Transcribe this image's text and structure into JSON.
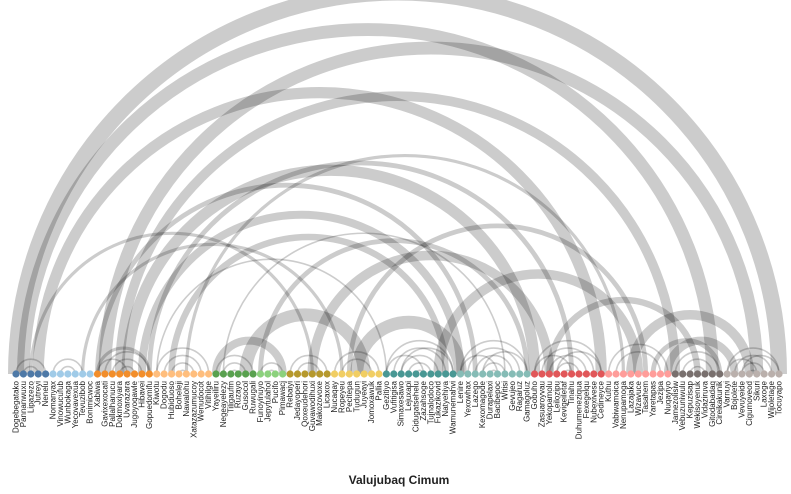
{
  "title": "Valujubaq Cimum",
  "nodes": [
    {
      "label": "Dogebegatako",
      "color": "#4e79a7"
    },
    {
      "label": "Pannanwuxu",
      "color": "#4e79a7"
    },
    {
      "label": "Lipazezo",
      "color": "#4e79a7"
    },
    {
      "label": "Jutreyi",
      "color": "#4e79a7"
    },
    {
      "label": "Nenelu",
      "color": "#4e79a7"
    },
    {
      "label": "Nomanyax",
      "color": "#a0cbe8"
    },
    {
      "label": "Vinowucufub",
      "color": "#a0cbe8"
    },
    {
      "label": "Wunbokaga",
      "color": "#a0cbe8"
    },
    {
      "label": "Yecovavexua",
      "color": "#a0cbe8"
    },
    {
      "label": "Tevuzibob",
      "color": "#a0cbe8"
    },
    {
      "label": "Bonimicwoc",
      "color": "#a0cbe8"
    },
    {
      "label": "Xabiwa",
      "color": "#f28e2b"
    },
    {
      "label": "Gavixexocati",
      "color": "#f28e2b"
    },
    {
      "label": "Pallalhanucu",
      "color": "#f28e2b"
    },
    {
      "label": "Dokmoxiyara",
      "color": "#f28e2b"
    },
    {
      "label": "Uvarazara",
      "color": "#f28e2b"
    },
    {
      "label": "Jugoyoqawle",
      "color": "#f28e2b"
    },
    {
      "label": "Hibavei",
      "color": "#f28e2b"
    },
    {
      "label": "Gopuedomifu",
      "color": "#f28e2b"
    },
    {
      "label": "Kiwotu",
      "color": "#ffbe7d"
    },
    {
      "label": "Dogodu",
      "color": "#ffbe7d"
    },
    {
      "label": "Hubiduoso",
      "color": "#ffbe7d"
    },
    {
      "label": "Boheleji",
      "color": "#ffbe7d"
    },
    {
      "label": "Nawalohu",
      "color": "#ffbe7d"
    },
    {
      "label": "Xatazazumucoy",
      "color": "#ffbe7d"
    },
    {
      "label": "Wenudocot",
      "color": "#ffbe7d"
    },
    {
      "label": "Vitihilge",
      "color": "#ffbe7d"
    },
    {
      "label": "Yayeiliru",
      "color": "#59a14f"
    },
    {
      "label": "Negeayelezy",
      "color": "#59a14f"
    },
    {
      "label": "Tiligaufm",
      "color": "#59a14f"
    },
    {
      "label": "Ruzayo",
      "color": "#59a14f"
    },
    {
      "label": "Gusocol",
      "color": "#59a14f"
    },
    {
      "label": "Ruwugali",
      "color": "#59a14f"
    },
    {
      "label": "Funoyinuyo",
      "color": "#8cd17d"
    },
    {
      "label": "Jepytulahol",
      "color": "#8cd17d"
    },
    {
      "label": "Pucifo",
      "color": "#8cd17d"
    },
    {
      "label": "Pimawacj",
      "color": "#8cd17d"
    },
    {
      "label": "Rebaiyi",
      "color": "#b6992d"
    },
    {
      "label": "Jedayoperi",
      "color": "#b6992d"
    },
    {
      "label": "Qoxeudehori",
      "color": "#b6992d"
    },
    {
      "label": "Guvawodihuxi",
      "color": "#b6992d"
    },
    {
      "label": "Makozovoxe",
      "color": "#b6992d"
    },
    {
      "label": "Licaxox",
      "color": "#b6992d"
    },
    {
      "label": "Nucaqay",
      "color": "#f1ce63"
    },
    {
      "label": "Ropeyeu",
      "color": "#f1ce63"
    },
    {
      "label": "Pecitepa",
      "color": "#f1ce63"
    },
    {
      "label": "Tudugun",
      "color": "#f1ce63"
    },
    {
      "label": "Juyeayi",
      "color": "#f1ce63"
    },
    {
      "label": "Jomoxawuk",
      "color": "#f1ce63"
    },
    {
      "label": "Pallia",
      "color": "#f1ce63"
    },
    {
      "label": "Gezitiyo",
      "color": "#499894"
    },
    {
      "label": "Vufitigisa",
      "color": "#499894"
    },
    {
      "label": "Simaxesawo",
      "color": "#499894"
    },
    {
      "label": "Lejuxapi",
      "color": "#499894"
    },
    {
      "label": "Cidugatsehelu",
      "color": "#499894"
    },
    {
      "label": "Zazahsoge",
      "color": "#499894"
    },
    {
      "label": "Tujnalodoco",
      "color": "#499894"
    },
    {
      "label": "Fukazikovid",
      "color": "#499894"
    },
    {
      "label": "Natyehiya",
      "color": "#499894"
    },
    {
      "label": "Wamunemahvi",
      "color": "#499894"
    },
    {
      "label": "Lenire",
      "color": "#86bcb6"
    },
    {
      "label": "Yexowhax",
      "color": "#86bcb6"
    },
    {
      "label": "Lazego",
      "color": "#86bcb6"
    },
    {
      "label": "Kexomagode",
      "color": "#86bcb6"
    },
    {
      "label": "Durapelaxi",
      "color": "#86bcb6"
    },
    {
      "label": "Bacibepoc",
      "color": "#86bcb6"
    },
    {
      "label": "Witisi",
      "color": "#86bcb6"
    },
    {
      "label": "Gevujeo",
      "color": "#86bcb6"
    },
    {
      "label": "Ragaruz",
      "color": "#86bcb6"
    },
    {
      "label": "Gamagoluz",
      "color": "#86bcb6"
    },
    {
      "label": "Gobuho",
      "color": "#e15759"
    },
    {
      "label": "Zasuaroyvau",
      "color": "#e15759"
    },
    {
      "label": "Yekopamolu",
      "color": "#e15759"
    },
    {
      "label": "Leilozipu",
      "color": "#e15759"
    },
    {
      "label": "Kevigeiletaf",
      "color": "#e15759"
    },
    {
      "label": "Tinahu",
      "color": "#e15759"
    },
    {
      "label": "Duhumeneziqua",
      "color": "#e15759"
    },
    {
      "label": "Fexegelqu",
      "color": "#e15759"
    },
    {
      "label": "Nubexivese",
      "color": "#e15759"
    },
    {
      "label": "Cedineyce",
      "color": "#e15759"
    },
    {
      "label": "Kuthu",
      "color": "#ff9d9a"
    },
    {
      "label": "Vabiwamoica",
      "color": "#ff9d9a"
    },
    {
      "label": "Nenupamoga",
      "color": "#ff9d9a"
    },
    {
      "label": "Lazajaka",
      "color": "#ff9d9a"
    },
    {
      "label": "Wizavuce",
      "color": "#ff9d9a"
    },
    {
      "label": "Tasahem",
      "color": "#ff9d9a"
    },
    {
      "label": "Yaretapas",
      "color": "#ff9d9a"
    },
    {
      "label": "Jezipa",
      "color": "#ff9d9a"
    },
    {
      "label": "Nuqayiyo",
      "color": "#ff9d9a"
    },
    {
      "label": "Jamezolisiw",
      "color": "#79706e"
    },
    {
      "label": "Vebuzuniwulu",
      "color": "#79706e"
    },
    {
      "label": "Kepuzisap",
      "color": "#79706e"
    },
    {
      "label": "Wekisoyenuk",
      "color": "#79706e"
    },
    {
      "label": "Vidaziruva",
      "color": "#79706e"
    },
    {
      "label": "Gitodabadaq",
      "color": "#79706e"
    },
    {
      "label": "Cireikakunik",
      "color": "#79706e"
    },
    {
      "label": "Varnuyi",
      "color": "#bab0ac"
    },
    {
      "label": "Bojolete",
      "color": "#bab0ac"
    },
    {
      "label": "Vevuyeide",
      "color": "#bab0ac"
    },
    {
      "label": "Cigumoveod",
      "color": "#bab0ac"
    },
    {
      "label": "Sikuri",
      "color": "#bab0ac"
    },
    {
      "label": "Laxoge",
      "color": "#bab0ac"
    },
    {
      "label": "Wijoletage",
      "color": "#bab0ac"
    },
    {
      "label": "Tocuyapo",
      "color": "#bab0ac"
    }
  ],
  "links": [
    {
      "source": 0,
      "target": 103,
      "value": 10
    },
    {
      "source": 1,
      "target": 94,
      "value": 8
    },
    {
      "source": 3,
      "target": 79,
      "value": 7
    },
    {
      "source": 12,
      "target": 100,
      "value": 8
    },
    {
      "source": 14,
      "target": 89,
      "value": 6
    },
    {
      "source": 15,
      "target": 70,
      "value": 7
    },
    {
      "source": 17,
      "target": 60,
      "value": 5
    },
    {
      "source": 21,
      "target": 58,
      "value": 4
    },
    {
      "source": 18,
      "target": 75,
      "value": 3
    },
    {
      "source": 11,
      "target": 62,
      "value": 3
    },
    {
      "source": 9,
      "target": 44,
      "value": 2
    },
    {
      "source": 2,
      "target": 40,
      "value": 2
    },
    {
      "source": 19,
      "target": 50,
      "value": 1
    },
    {
      "source": 28,
      "target": 66,
      "value": 1
    },
    {
      "source": 23,
      "target": 82,
      "value": 2
    },
    {
      "source": 45,
      "target": 85,
      "value": 3
    },
    {
      "source": 40,
      "target": 72,
      "value": 6
    },
    {
      "source": 33,
      "target": 69,
      "value": 3
    },
    {
      "source": 31,
      "target": 47,
      "value": 8
    },
    {
      "source": 27,
      "target": 36,
      "value": 5
    },
    {
      "source": 46,
      "target": 60,
      "value": 8
    },
    {
      "source": 57,
      "target": 84,
      "value": 6
    },
    {
      "source": 72,
      "target": 92,
      "value": 4
    },
    {
      "source": 83,
      "target": 99,
      "value": 6
    },
    {
      "source": 88,
      "target": 97,
      "value": 5
    },
    {
      "source": 86,
      "target": 95,
      "value": 3
    },
    {
      "source": 0,
      "target": 4,
      "value": 1
    },
    {
      "source": 1,
      "target": 3,
      "value": 1
    },
    {
      "source": 5,
      "target": 9,
      "value": 1
    },
    {
      "source": 6,
      "target": 8,
      "value": 1
    },
    {
      "source": 11,
      "target": 18,
      "value": 2
    },
    {
      "source": 12,
      "target": 18,
      "value": 1
    },
    {
      "source": 13,
      "target": 17,
      "value": 1
    },
    {
      "source": 14,
      "target": 16,
      "value": 1
    },
    {
      "source": 11,
      "target": 15,
      "value": 1
    },
    {
      "source": 19,
      "target": 26,
      "value": 1
    },
    {
      "source": 20,
      "target": 25,
      "value": 1
    },
    {
      "source": 21,
      "target": 24,
      "value": 1
    },
    {
      "source": 22,
      "target": 23,
      "value": 1
    },
    {
      "source": 27,
      "target": 32,
      "value": 1
    },
    {
      "source": 28,
      "target": 31,
      "value": 1
    },
    {
      "source": 29,
      "target": 30,
      "value": 1
    },
    {
      "source": 33,
      "target": 36,
      "value": 1
    },
    {
      "source": 34,
      "target": 35,
      "value": 1
    },
    {
      "source": 37,
      "target": 42,
      "value": 1
    },
    {
      "source": 38,
      "target": 41,
      "value": 1
    },
    {
      "source": 43,
      "target": 49,
      "value": 1
    },
    {
      "source": 44,
      "target": 48,
      "value": 1
    },
    {
      "source": 50,
      "target": 59,
      "value": 1
    },
    {
      "source": 51,
      "target": 58,
      "value": 1
    },
    {
      "source": 52,
      "target": 57,
      "value": 1
    },
    {
      "source": 53,
      "target": 56,
      "value": 1
    },
    {
      "source": 54,
      "target": 55,
      "value": 1
    },
    {
      "source": 50,
      "target": 55,
      "value": 1
    },
    {
      "source": 52,
      "target": 59,
      "value": 1
    },
    {
      "source": 60,
      "target": 69,
      "value": 1
    },
    {
      "source": 61,
      "target": 68,
      "value": 1
    },
    {
      "source": 62,
      "target": 67,
      "value": 1
    },
    {
      "source": 63,
      "target": 66,
      "value": 1
    },
    {
      "source": 64,
      "target": 65,
      "value": 1
    },
    {
      "source": 60,
      "target": 65,
      "value": 1
    },
    {
      "source": 63,
      "target": 69,
      "value": 1
    },
    {
      "source": 70,
      "target": 79,
      "value": 1
    },
    {
      "source": 71,
      "target": 78,
      "value": 1
    },
    {
      "source": 72,
      "target": 77,
      "value": 1
    },
    {
      "source": 73,
      "target": 76,
      "value": 1
    },
    {
      "source": 74,
      "target": 75,
      "value": 1
    },
    {
      "source": 70,
      "target": 75,
      "value": 1
    },
    {
      "source": 73,
      "target": 79,
      "value": 1
    },
    {
      "source": 80,
      "target": 88,
      "value": 1
    },
    {
      "source": 81,
      "target": 87,
      "value": 1
    },
    {
      "source": 89,
      "target": 95,
      "value": 1
    },
    {
      "source": 90,
      "target": 94,
      "value": 1
    },
    {
      "source": 91,
      "target": 93,
      "value": 1
    },
    {
      "source": 96,
      "target": 103,
      "value": 1
    },
    {
      "source": 97,
      "target": 102,
      "value": 1
    },
    {
      "source": 98,
      "target": 101,
      "value": 1
    },
    {
      "source": 99,
      "target": 100,
      "value": 1
    },
    {
      "source": 96,
      "target": 100,
      "value": 1
    },
    {
      "source": 98,
      "target": 103,
      "value": 1
    }
  ]
}
